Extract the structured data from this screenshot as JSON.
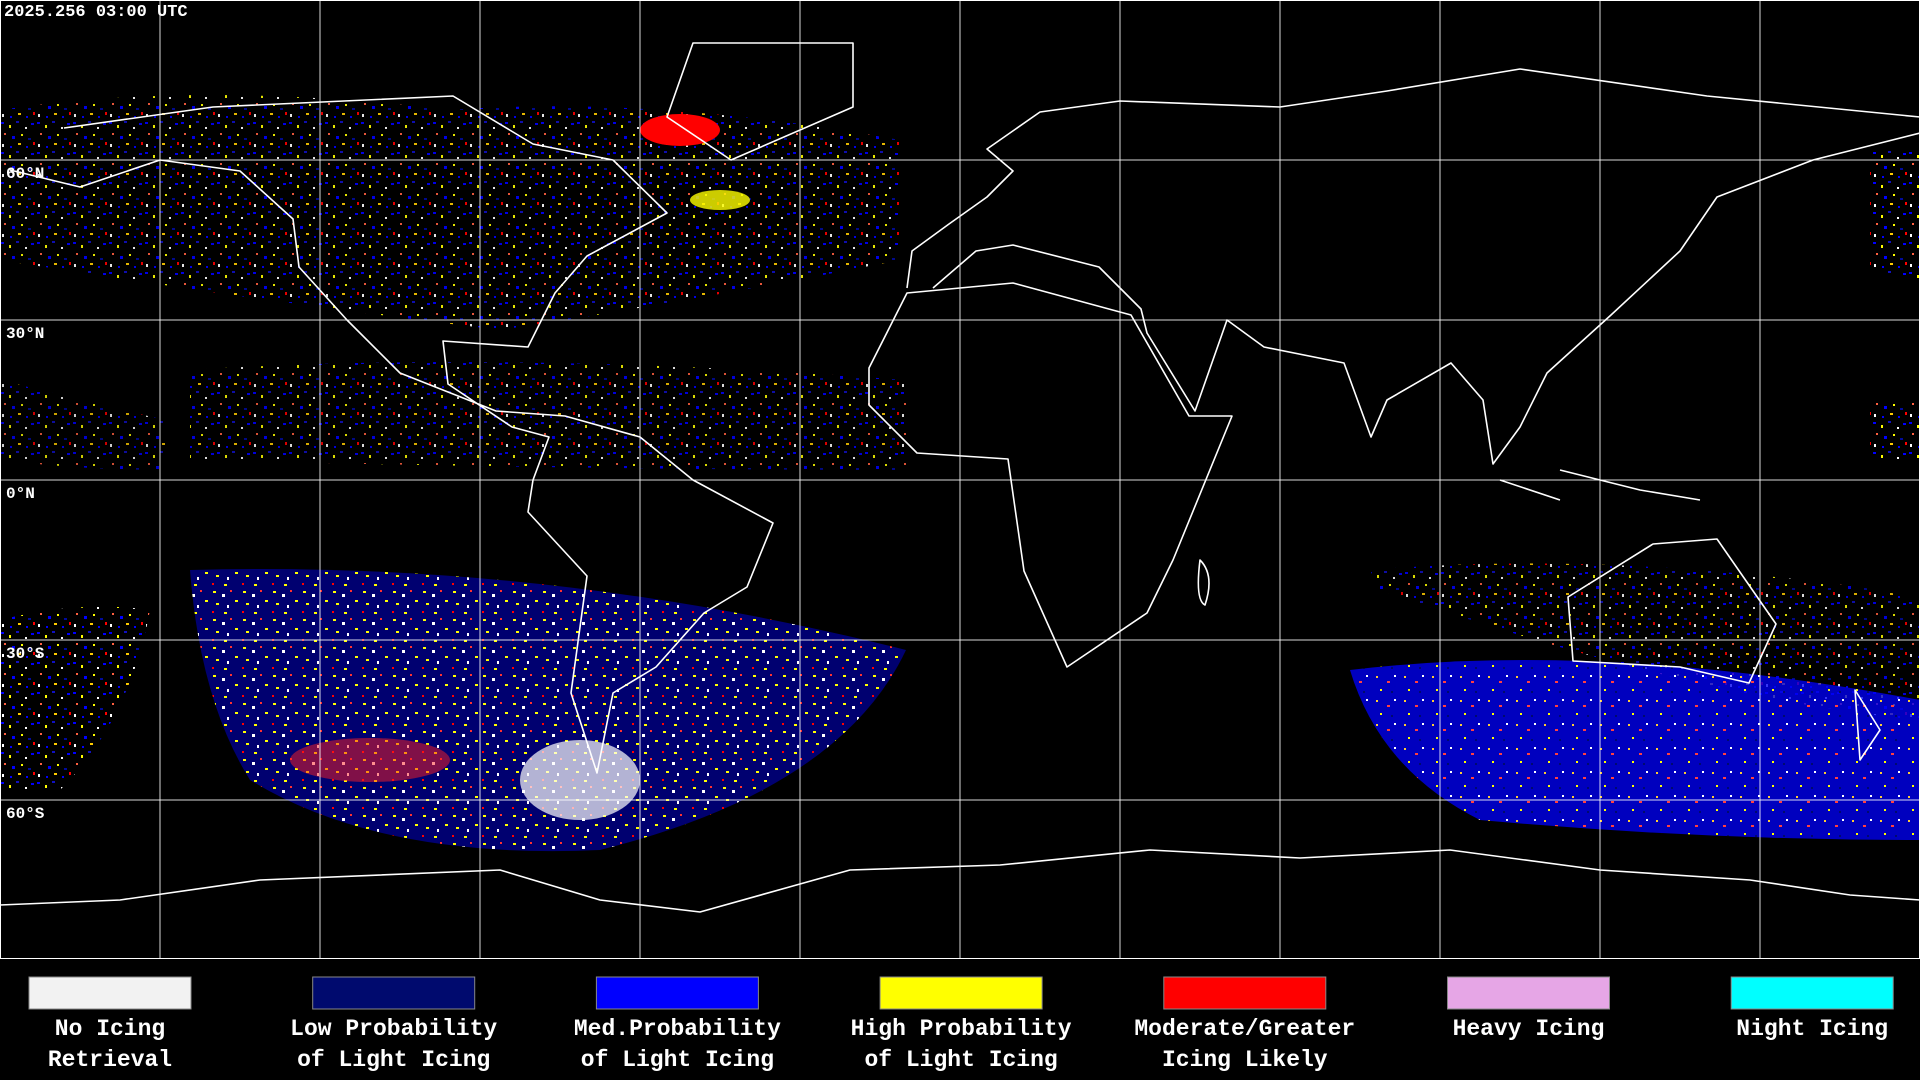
{
  "header": {
    "timestamp": "2025.256 03:00 UTC"
  },
  "latitude_labels": [
    "60°N",
    "30°N",
    "0°N",
    "30°S",
    "60°S"
  ],
  "legend": [
    {
      "label": [
        "No Icing",
        "Retrieval"
      ],
      "color": "#f2f2f2"
    },
    {
      "label": [
        "Low Probability",
        "of Light Icing"
      ],
      "color": "#000a6e"
    },
    {
      "label": [
        "Med.Probability",
        "of Light Icing"
      ],
      "color": "#0000ff"
    },
    {
      "label": [
        "High Probability",
        "of Light Icing"
      ],
      "color": "#ffff00"
    },
    {
      "label": [
        "Moderate/Greater",
        "Icing Likely"
      ],
      "color": "#ff0000"
    },
    {
      "label": [
        "Heavy Icing"
      ],
      "color": "#e6a6e6"
    },
    {
      "label": [
        "Night Icing"
      ],
      "color": "#00ffff"
    }
  ]
}
